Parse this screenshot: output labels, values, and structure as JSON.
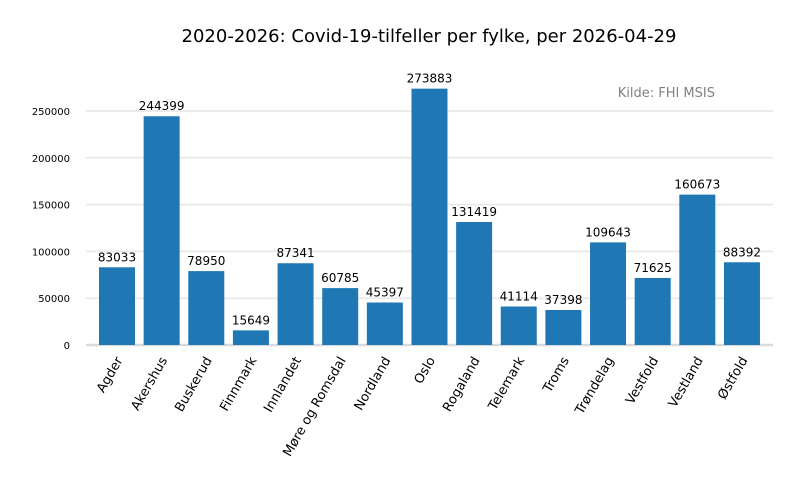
{
  "chart_data": {
    "type": "bar",
    "title": "2020-2026: Covid-19-tilfeller per fylke, per 2026-04-29",
    "annotation": "Kilde: FHI MSIS",
    "xlabel": "",
    "ylabel": "",
    "categories": [
      "Agder",
      "Akershus",
      "Buskerud",
      "Finnmark",
      "Innlandet",
      "Møre og Romsdal",
      "Nordland",
      "Oslo",
      "Rogaland",
      "Telemark",
      "Troms",
      "Trøndelag",
      "Vestfold",
      "Vestland",
      "Østfold"
    ],
    "values": [
      83033,
      244399,
      78950,
      15649,
      87341,
      60785,
      45397,
      273883,
      131419,
      41114,
      37398,
      109643,
      71625,
      160673,
      88392
    ],
    "yticks": [
      0,
      50000,
      100000,
      150000,
      200000,
      250000
    ],
    "ylim": [
      0,
      290000
    ],
    "grid": true,
    "bar_color": "#1f77b4",
    "data_labels": true
  }
}
